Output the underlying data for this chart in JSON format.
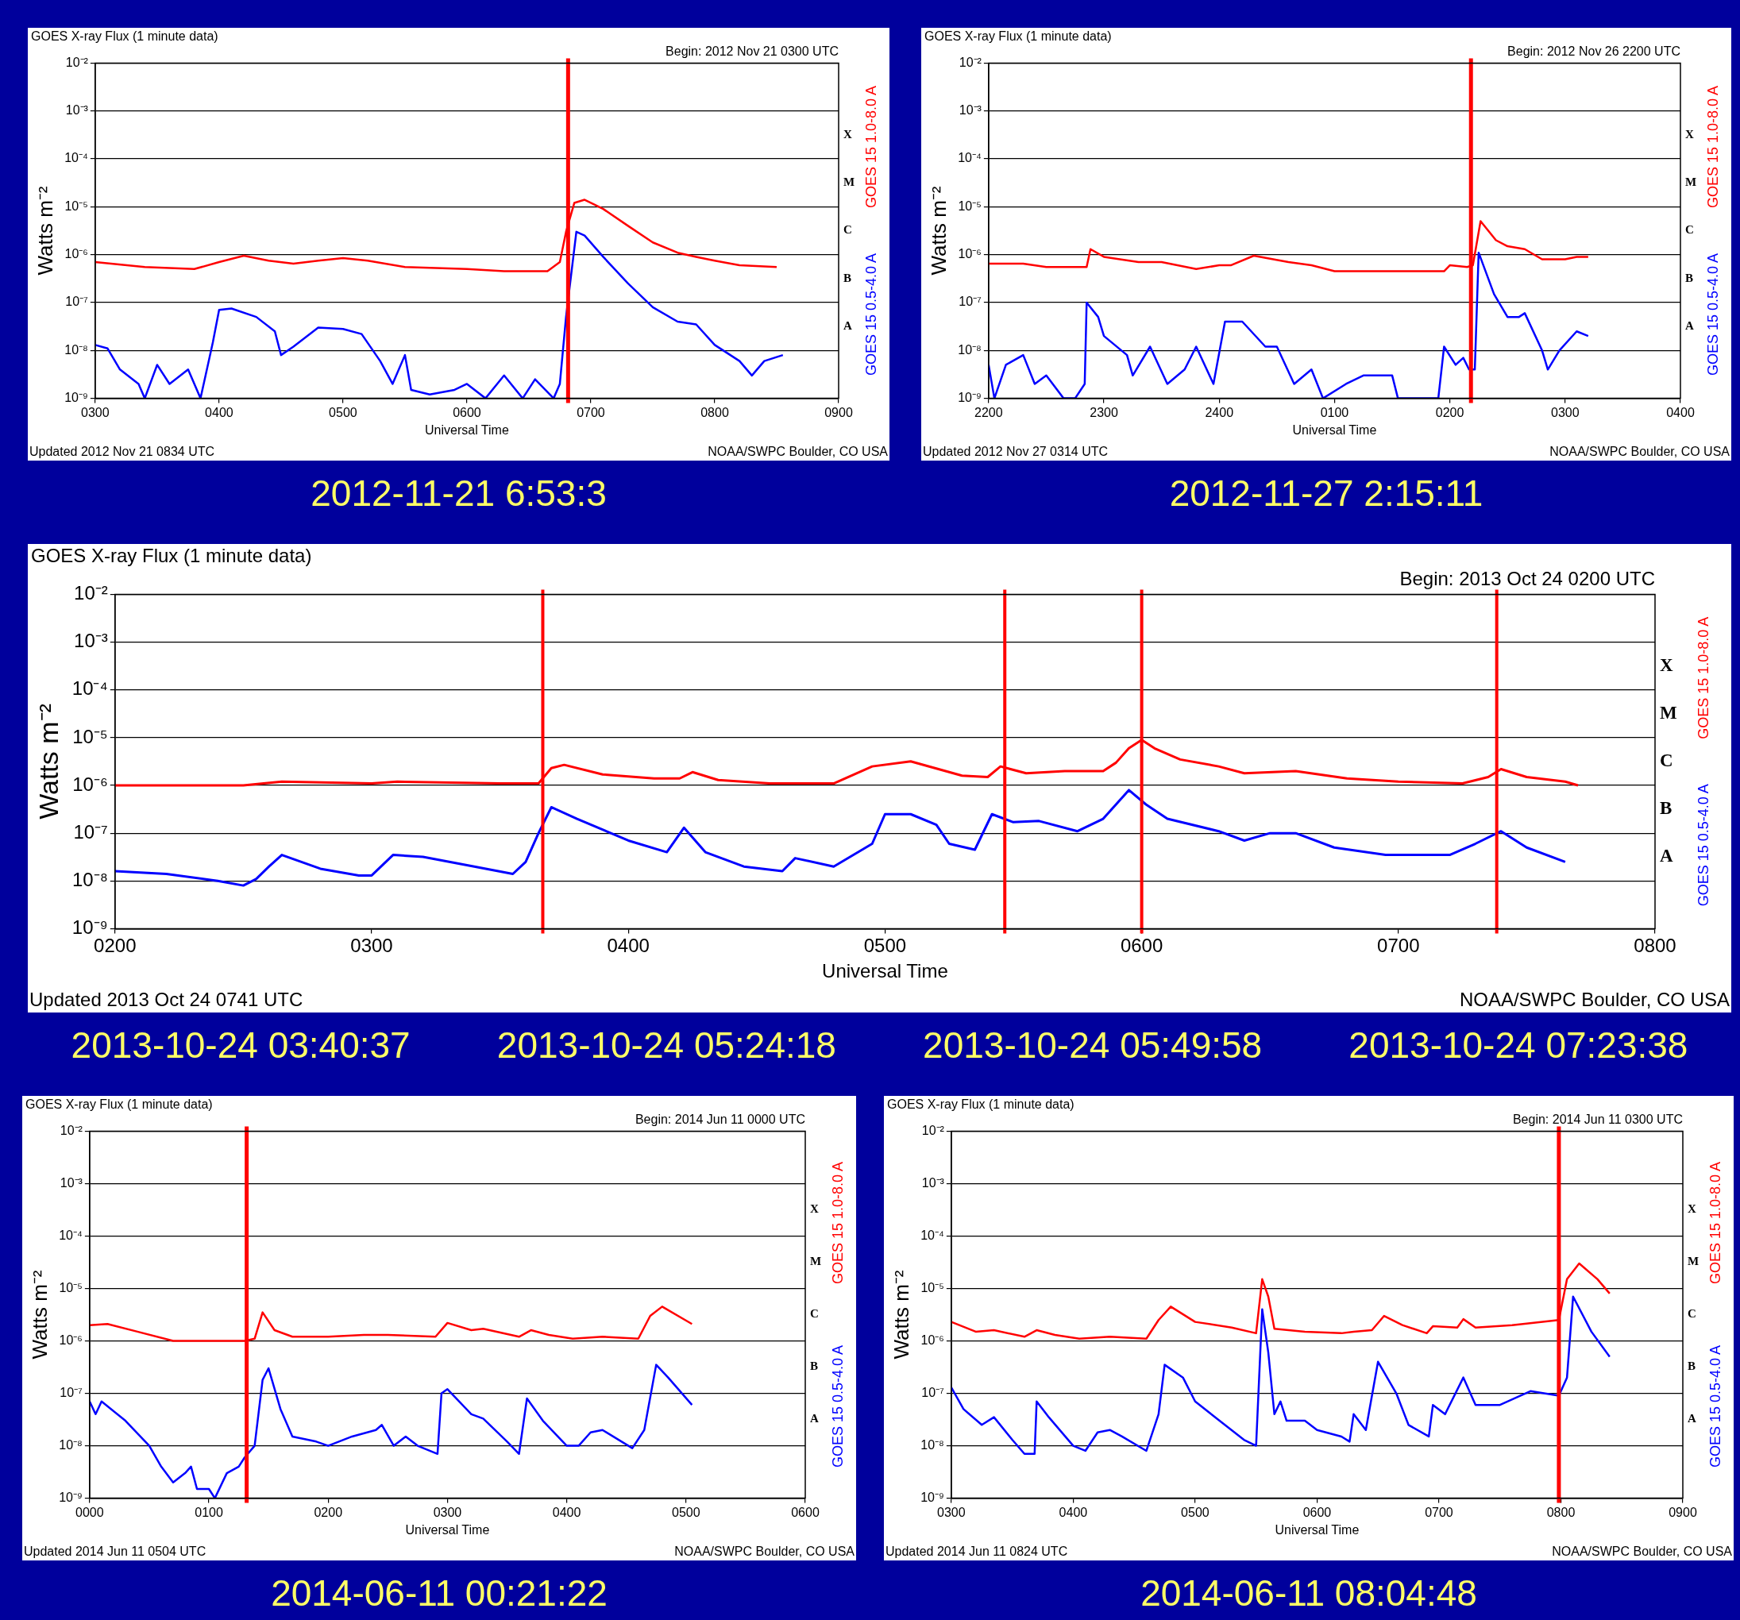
{
  "chart_data": [
    {
      "type": "line",
      "title": "GOES X-ray Flux (1 minute data)",
      "subtitle": "Begin: 2012 Nov 21 0300 UTC",
      "xlabel": "Universal Time",
      "ylabel": "Watts m⁻²",
      "annotations": [
        "Updated 2012 Nov 21 0834 UTC",
        "NOAA/SWPC Boulder, CO USA",
        "A",
        "B",
        "C",
        "M",
        "X",
        "2012-11-21 6:53:3"
      ],
      "xlim": [
        "2012-11-21T03:00",
        "2012-11-21T09:00"
      ],
      "xticks": [
        {
          "value": "2012-11-21T03:00",
          "label": "0300"
        },
        {
          "value": "2012-11-21T04:00",
          "label": "0400"
        },
        {
          "value": "2012-11-21T05:00",
          "label": "0500"
        },
        {
          "value": "2012-11-21T06:00",
          "label": "0600"
        },
        {
          "value": "2012-11-21T07:00",
          "label": "0700"
        },
        {
          "value": "2012-11-21T08:00",
          "label": "0800"
        },
        {
          "value": "2012-11-21T09:00",
          "label": "0900"
        }
      ],
      "ylim": [
        1e-09,
        0.01
      ],
      "yticks": [
        {
          "value": 1e-09,
          "label": "10⁻⁹"
        },
        {
          "value": 1e-08,
          "label": "10⁻⁸"
        },
        {
          "value": 1e-07,
          "label": "10⁻⁷"
        },
        {
          "value": 1e-06,
          "label": "10⁻⁶"
        },
        {
          "value": 1e-05,
          "label": "10⁻⁵"
        },
        {
          "value": 0.0001,
          "label": "10⁻⁴"
        },
        {
          "value": 0.001,
          "label": "10⁻³"
        },
        {
          "value": 0.01,
          "label": "10⁻²"
        }
      ],
      "log": true,
      "grid": "y",
      "ref_lines": [
        {
          "axis": "x",
          "value": "2012-11-21T06:49",
          "color": "#ff0000"
        }
      ],
      "series": [
        {
          "name": "GOES 15 1.0-8.0 A",
          "color": "#ff0000",
          "x": [
            "2012-11-21T03:00",
            "2012-11-21T03:24",
            "2012-11-21T03:48",
            "2012-11-21T04:00",
            "2012-11-21T04:12",
            "2012-11-21T04:24",
            "2012-11-21T04:36",
            "2012-11-21T04:48",
            "2012-11-21T05:00",
            "2012-11-21T05:12",
            "2012-11-21T05:30",
            "2012-11-21T06:00",
            "2012-11-21T06:18",
            "2012-11-21T06:39",
            "2012-11-21T06:45",
            "2012-11-21T06:48",
            "2012-11-21T06:52",
            "2012-11-21T06:57",
            "2012-11-21T07:06",
            "2012-11-21T07:18",
            "2012-11-21T07:30",
            "2012-11-21T07:42",
            "2012-11-21T07:51",
            "2012-11-21T08:00",
            "2012-11-21T08:12",
            "2012-11-21T08:30"
          ],
          "values": [
            7e-07,
            5.5e-07,
            5e-07,
            7e-07,
            9.5e-07,
            7.5e-07,
            6.5e-07,
            7.5e-07,
            8.5e-07,
            7.5e-07,
            5.5e-07,
            5e-07,
            4.5e-07,
            4.5e-07,
            7e-07,
            3e-06,
            1.2e-05,
            1.4e-05,
            9e-06,
            4e-06,
            1.8e-06,
            1.1e-06,
            9e-07,
            7.5e-07,
            6e-07,
            5.5e-07
          ]
        },
        {
          "name": "GOES 15 0.5-4.0 A",
          "color": "#0000ff",
          "x": [
            "2012-11-21T03:00",
            "2012-11-21T03:06",
            "2012-11-21T03:12",
            "2012-11-21T03:21",
            "2012-11-21T03:24",
            "2012-11-21T03:30",
            "2012-11-21T03:36",
            "2012-11-21T03:45",
            "2012-11-21T03:51",
            "2012-11-21T03:57",
            "2012-11-21T04:00",
            "2012-11-21T04:06",
            "2012-11-21T04:18",
            "2012-11-21T04:27",
            "2012-11-21T04:30",
            "2012-11-21T04:36",
            "2012-11-21T04:48",
            "2012-11-21T05:00",
            "2012-11-21T05:09",
            "2012-11-21T05:18",
            "2012-11-21T05:24",
            "2012-11-21T05:30",
            "2012-11-21T05:33",
            "2012-11-21T05:42",
            "2012-11-21T05:54",
            "2012-11-21T06:00",
            "2012-11-21T06:09",
            "2012-11-21T06:18",
            "2012-11-21T06:27",
            "2012-11-21T06:33",
            "2012-11-21T06:42",
            "2012-11-21T06:45",
            "2012-11-21T06:48",
            "2012-11-21T06:53",
            "2012-11-21T06:57",
            "2012-11-21T07:06",
            "2012-11-21T07:18",
            "2012-11-21T07:30",
            "2012-11-21T07:42",
            "2012-11-21T07:51",
            "2012-11-21T08:00",
            "2012-11-21T08:12",
            "2012-11-21T08:18",
            "2012-11-21T08:24",
            "2012-11-21T08:33"
          ],
          "values": [
            1.3e-08,
            1.1e-08,
            4e-09,
            2e-09,
            1e-09,
            5e-09,
            2e-09,
            4e-09,
            1e-09,
            1.5e-08,
            7e-08,
            7.5e-08,
            5e-08,
            2.5e-08,
            8e-09,
            1.2e-08,
            3e-08,
            2.8e-08,
            2.2e-08,
            6e-09,
            2e-09,
            8e-09,
            1.5e-09,
            1.2e-09,
            1.5e-09,
            2e-09,
            1e-09,
            3e-09,
            1e-09,
            2.5e-09,
            1e-09,
            2e-09,
            5e-08,
            3e-06,
            2.5e-06,
            9e-07,
            2.5e-07,
            8e-08,
            4e-08,
            3.5e-08,
            1.3e-08,
            6e-09,
            3e-09,
            6e-09,
            8e-09
          ]
        }
      ]
    },
    {
      "type": "line",
      "title": "GOES X-ray Flux (1 minute data)",
      "subtitle": "Begin: 2012 Nov 26 2200 UTC",
      "xlabel": "Universal Time",
      "ylabel": "Watts m⁻²",
      "annotations": [
        "Updated 2012 Nov 27 0314 UTC",
        "NOAA/SWPC Boulder, CO USA",
        "A",
        "B",
        "C",
        "M",
        "X",
        "2012-11-27 2:15:11"
      ],
      "xlim": [
        "2012-11-26T22:00",
        "2012-11-27T04:00"
      ],
      "xticks": [
        {
          "value": "2012-11-26T22:00",
          "label": "2200"
        },
        {
          "value": "2012-11-26T23:00",
          "label": "2300"
        },
        {
          "value": "2012-11-27T00:00",
          "label": "2400"
        },
        {
          "value": "2012-11-27T01:00",
          "label": "0100"
        },
        {
          "value": "2012-11-27T02:00",
          "label": "0200"
        },
        {
          "value": "2012-11-27T03:00",
          "label": "0300"
        },
        {
          "value": "2012-11-27T04:00",
          "label": "0400"
        }
      ],
      "ylim": [
        1e-09,
        0.01
      ],
      "yticks": [
        {
          "value": 1e-09,
          "label": "10⁻⁹"
        },
        {
          "value": 1e-08,
          "label": "10⁻⁸"
        },
        {
          "value": 1e-07,
          "label": "10⁻⁷"
        },
        {
          "value": 1e-06,
          "label": "10⁻⁶"
        },
        {
          "value": 1e-05,
          "label": "10⁻⁵"
        },
        {
          "value": 0.0001,
          "label": "10⁻⁴"
        },
        {
          "value": 0.001,
          "label": "10⁻³"
        },
        {
          "value": 0.01,
          "label": "10⁻²"
        }
      ],
      "log": true,
      "grid": "y",
      "ref_lines": [
        {
          "axis": "x",
          "value": "2012-11-27T02:11",
          "color": "#ff0000"
        }
      ],
      "series": [
        {
          "name": "GOES 15 1.0-8.0 A",
          "color": "#ff0000",
          "x": [
            "2012-11-26T22:00",
            "2012-11-26T22:18",
            "2012-11-26T22:30",
            "2012-11-26T22:51",
            "2012-11-26T22:53",
            "2012-11-26T23:00",
            "2012-11-26T23:18",
            "2012-11-26T23:30",
            "2012-11-26T23:48",
            "2012-11-27T00:00",
            "2012-11-27T00:06",
            "2012-11-27T00:18",
            "2012-11-27T00:36",
            "2012-11-27T00:48",
            "2012-11-27T01:00",
            "2012-11-27T01:18",
            "2012-11-27T01:36",
            "2012-11-27T01:57",
            "2012-11-27T02:00",
            "2012-11-27T02:09",
            "2012-11-27T02:12",
            "2012-11-27T02:16",
            "2012-11-27T02:24",
            "2012-11-27T02:30",
            "2012-11-27T02:39",
            "2012-11-27T02:48",
            "2012-11-27T03:00",
            "2012-11-27T03:06",
            "2012-11-27T03:12"
          ],
          "values": [
            6.5e-07,
            6.5e-07,
            5.5e-07,
            5.5e-07,
            1.3e-06,
            9e-07,
            7e-07,
            7e-07,
            5e-07,
            6e-07,
            6e-07,
            9.5e-07,
            7e-07,
            6e-07,
            4.5e-07,
            4.5e-07,
            4.5e-07,
            4.5e-07,
            6e-07,
            5.5e-07,
            6e-07,
            5e-06,
            2e-06,
            1.5e-06,
            1.3e-06,
            8e-07,
            8e-07,
            9e-07,
            9e-07
          ]
        },
        {
          "name": "GOES 15 0.5-4.0 A",
          "color": "#0000ff",
          "x": [
            "2012-11-26T22:00",
            "2012-11-26T22:03",
            "2012-11-26T22:09",
            "2012-11-26T22:18",
            "2012-11-26T22:24",
            "2012-11-26T22:30",
            "2012-11-26T22:39",
            "2012-11-26T22:45",
            "2012-11-26T22:50",
            "2012-11-26T22:51",
            "2012-11-26T22:57",
            "2012-11-26T23:00",
            "2012-11-26T23:12",
            "2012-11-26T23:15",
            "2012-11-26T23:24",
            "2012-11-26T23:33",
            "2012-11-26T23:42",
            "2012-11-26T23:48",
            "2012-11-26T23:57",
            "2012-11-27T00:03",
            "2012-11-27T00:12",
            "2012-11-27T00:24",
            "2012-11-27T00:30",
            "2012-11-27T00:39",
            "2012-11-27T00:48",
            "2012-11-27T00:54",
            "2012-11-27T01:06",
            "2012-11-27T01:15",
            "2012-11-27T01:30",
            "2012-11-27T01:33",
            "2012-11-27T01:54",
            "2012-11-27T01:57",
            "2012-11-27T02:03",
            "2012-11-27T02:07",
            "2012-11-27T02:10",
            "2012-11-27T02:13",
            "2012-11-27T02:15",
            "2012-11-27T02:23",
            "2012-11-27T02:30",
            "2012-11-27T02:36",
            "2012-11-27T02:39",
            "2012-11-27T02:48",
            "2012-11-27T02:51",
            "2012-11-27T02:57",
            "2012-11-27T03:06",
            "2012-11-27T03:12"
          ],
          "values": [
            5e-09,
            1e-09,
            5e-09,
            8e-09,
            2e-09,
            3e-09,
            1e-09,
            1e-09,
            2e-09,
            1e-07,
            5e-08,
            2e-08,
            8e-09,
            3e-09,
            1.2e-08,
            2e-09,
            4e-09,
            1.2e-08,
            2e-09,
            4e-08,
            4e-08,
            1.2e-08,
            1.2e-08,
            2e-09,
            4e-09,
            1e-09,
            2e-09,
            3e-09,
            3e-09,
            1e-09,
            1e-09,
            1.2e-08,
            5e-09,
            7e-09,
            4e-09,
            4e-09,
            1.1e-06,
            1.5e-07,
            5e-08,
            5e-08,
            6e-08,
            1e-08,
            4e-09,
            1e-08,
            2.5e-08,
            2e-08
          ]
        }
      ]
    },
    {
      "type": "line",
      "title": "GOES X-ray Flux (1 minute data)",
      "subtitle": "Begin: 2013 Oct 24 0200 UTC",
      "xlabel": "Universal Time",
      "ylabel": "Watts m⁻²",
      "annotations": [
        "Updated 2013 Oct 24 0741 UTC",
        "NOAA/SWPC Boulder, CO USA",
        "A",
        "B",
        "C",
        "M",
        "X",
        "2013-10-24 03:40:37",
        "2013-10-24 05:24:18",
        "2013-10-24 05:49:58",
        "2013-10-24 07:23:38"
      ],
      "xlim": [
        "2013-10-24T02:00",
        "2013-10-24T08:00"
      ],
      "xticks": [
        {
          "value": "2013-10-24T02:00",
          "label": "0200"
        },
        {
          "value": "2013-10-24T03:00",
          "label": "0300"
        },
        {
          "value": "2013-10-24T04:00",
          "label": "0400"
        },
        {
          "value": "2013-10-24T05:00",
          "label": "0500"
        },
        {
          "value": "2013-10-24T06:00",
          "label": "0600"
        },
        {
          "value": "2013-10-24T07:00",
          "label": "0700"
        },
        {
          "value": "2013-10-24T08:00",
          "label": "0800"
        }
      ],
      "ylim": [
        1e-09,
        0.01
      ],
      "yticks": [
        {
          "value": 1e-09,
          "label": "10⁻⁹"
        },
        {
          "value": 1e-08,
          "label": "10⁻⁸"
        },
        {
          "value": 1e-07,
          "label": "10⁻⁷"
        },
        {
          "value": 1e-06,
          "label": "10⁻⁶"
        },
        {
          "value": 1e-05,
          "label": "10⁻⁵"
        },
        {
          "value": 0.0001,
          "label": "10⁻⁴"
        },
        {
          "value": 0.001,
          "label": "10⁻³"
        },
        {
          "value": 0.01,
          "label": "10⁻²"
        }
      ],
      "log": true,
      "grid": "y",
      "ref_lines": [
        {
          "axis": "x",
          "value": "2013-10-24T03:40",
          "color": "#ff0000"
        },
        {
          "axis": "x",
          "value": "2013-10-24T05:28",
          "color": "#ff0000"
        },
        {
          "axis": "x",
          "value": "2013-10-24T06:00",
          "color": "#ff0000"
        },
        {
          "axis": "x",
          "value": "2013-10-24T07:23",
          "color": "#ff0000"
        }
      ],
      "series": [
        {
          "name": "GOES 15 1.0-8.0 A",
          "color": "#ff0000",
          "x": [
            "2013-10-24T02:00",
            "2013-10-24T02:30",
            "2013-10-24T02:39",
            "2013-10-24T03:00",
            "2013-10-24T03:06",
            "2013-10-24T03:30",
            "2013-10-24T03:39",
            "2013-10-24T03:42",
            "2013-10-24T03:45",
            "2013-10-24T03:54",
            "2013-10-24T04:06",
            "2013-10-24T04:12",
            "2013-10-24T04:15",
            "2013-10-24T04:21",
            "2013-10-24T04:33",
            "2013-10-24T04:48",
            "2013-10-24T04:57",
            "2013-10-24T05:06",
            "2013-10-24T05:18",
            "2013-10-24T05:24",
            "2013-10-24T05:27",
            "2013-10-24T05:33",
            "2013-10-24T05:42",
            "2013-10-24T05:51",
            "2013-10-24T05:54",
            "2013-10-24T05:57",
            "2013-10-24T06:00",
            "2013-10-24T06:03",
            "2013-10-24T06:09",
            "2013-10-24T06:18",
            "2013-10-24T06:24",
            "2013-10-24T06:36",
            "2013-10-24T06:48",
            "2013-10-24T07:00",
            "2013-10-24T07:15",
            "2013-10-24T07:21",
            "2013-10-24T07:24",
            "2013-10-24T07:30",
            "2013-10-24T07:39",
            "2013-10-24T07:42"
          ],
          "values": [
            1e-06,
            1e-06,
            1.2e-06,
            1.1e-06,
            1.2e-06,
            1.1e-06,
            1.1e-06,
            2.3e-06,
            2.7e-06,
            1.7e-06,
            1.4e-06,
            1.4e-06,
            1.9e-06,
            1.3e-06,
            1.1e-06,
            1.1e-06,
            2.5e-06,
            3.2e-06,
            1.6e-06,
            1.5e-06,
            2.5e-06,
            1.8e-06,
            2e-06,
            2e-06,
            3e-06,
            6e-06,
            9e-06,
            6e-06,
            3.5e-06,
            2.5e-06,
            1.8e-06,
            2e-06,
            1.4e-06,
            1.2e-06,
            1.1e-06,
            1.5e-06,
            2.2e-06,
            1.5e-06,
            1.2e-06,
            1e-06
          ]
        },
        {
          "name": "GOES 15 0.5-4.0 A",
          "color": "#0000ff",
          "x": [
            "2013-10-24T02:00",
            "2013-10-24T02:12",
            "2013-10-24T02:24",
            "2013-10-24T02:30",
            "2013-10-24T02:33",
            "2013-10-24T02:36",
            "2013-10-24T02:39",
            "2013-10-24T02:48",
            "2013-10-24T02:57",
            "2013-10-24T03:00",
            "2013-10-24T03:05",
            "2013-10-24T03:12",
            "2013-10-24T03:24",
            "2013-10-24T03:33",
            "2013-10-24T03:36",
            "2013-10-24T03:39",
            "2013-10-24T03:42",
            "2013-10-24T03:48",
            "2013-10-24T04:00",
            "2013-10-24T04:09",
            "2013-10-24T04:13",
            "2013-10-24T04:18",
            "2013-10-24T04:27",
            "2013-10-24T04:36",
            "2013-10-24T04:39",
            "2013-10-24T04:48",
            "2013-10-24T04:57",
            "2013-10-24T05:00",
            "2013-10-24T05:06",
            "2013-10-24T05:12",
            "2013-10-24T05:15",
            "2013-10-24T05:21",
            "2013-10-24T05:25",
            "2013-10-24T05:30",
            "2013-10-24T05:36",
            "2013-10-24T05:45",
            "2013-10-24T05:51",
            "2013-10-24T05:57",
            "2013-10-24T06:01",
            "2013-10-24T06:06",
            "2013-10-24T06:18",
            "2013-10-24T06:24",
            "2013-10-24T06:30",
            "2013-10-24T06:36",
            "2013-10-24T06:45",
            "2013-10-24T06:57",
            "2013-10-24T07:12",
            "2013-10-24T07:18",
            "2013-10-24T07:24",
            "2013-10-24T07:30",
            "2013-10-24T07:39"
          ],
          "values": [
            1.6e-08,
            1.4e-08,
            1e-08,
            8e-09,
            1.1e-08,
            2e-08,
            3.5e-08,
            1.8e-08,
            1.3e-08,
            1.3e-08,
            3.5e-08,
            3.2e-08,
            2e-08,
            1.4e-08,
            2.5e-08,
            1e-07,
            3.5e-07,
            2e-07,
            7e-08,
            4e-08,
            1.3e-07,
            4e-08,
            2e-08,
            1.6e-08,
            3e-08,
            2e-08,
            6e-08,
            2.5e-07,
            2.5e-07,
            1.5e-07,
            6e-08,
            4.5e-08,
            2.5e-07,
            1.7e-07,
            1.8e-07,
            1.1e-07,
            2e-07,
            8e-07,
            4e-07,
            2e-07,
            1.1e-07,
            7e-08,
            1e-07,
            1e-07,
            5e-08,
            3.5e-08,
            3.5e-08,
            6e-08,
            1.1e-07,
            5e-08,
            2.5e-08
          ]
        }
      ]
    },
    {
      "type": "line",
      "title": "GOES X-ray Flux (1 minute data)",
      "subtitle": "Begin: 2014 Jun 11 0000 UTC",
      "xlabel": "Universal Time",
      "ylabel": "Watts m⁻²",
      "annotations": [
        "Updated 2014 Jun 11 0504 UTC",
        "NOAA/SWPC Boulder, CO USA",
        "A",
        "B",
        "C",
        "M",
        "X",
        "2014-06-11 00:21:22"
      ],
      "xlim": [
        "2014-06-11T00:00",
        "2014-06-11T06:00"
      ],
      "xticks": [
        {
          "value": "2014-06-11T00:00",
          "label": "0000"
        },
        {
          "value": "2014-06-11T01:00",
          "label": "0100"
        },
        {
          "value": "2014-06-11T02:00",
          "label": "0200"
        },
        {
          "value": "2014-06-11T03:00",
          "label": "0300"
        },
        {
          "value": "2014-06-11T04:00",
          "label": "0400"
        },
        {
          "value": "2014-06-11T05:00",
          "label": "0500"
        },
        {
          "value": "2014-06-11T06:00",
          "label": "0600"
        }
      ],
      "ylim": [
        1e-09,
        0.01
      ],
      "yticks": [
        {
          "value": 1e-09,
          "label": "10⁻⁹"
        },
        {
          "value": 1e-08,
          "label": "10⁻⁸"
        },
        {
          "value": 1e-07,
          "label": "10⁻⁷"
        },
        {
          "value": 1e-06,
          "label": "10⁻⁶"
        },
        {
          "value": 1e-05,
          "label": "10⁻⁵"
        },
        {
          "value": 0.0001,
          "label": "10⁻⁴"
        },
        {
          "value": 0.001,
          "label": "10⁻³"
        },
        {
          "value": 0.01,
          "label": "10⁻²"
        }
      ],
      "log": true,
      "grid": "y",
      "ref_lines": [
        {
          "axis": "x",
          "value": "2014-06-11T01:19",
          "color": "#ff0000"
        }
      ],
      "series": [
        {
          "name": "GOES 15 1.0-8.0 A",
          "color": "#ff0000",
          "x": [
            "2014-06-11T00:00",
            "2014-06-11T00:09",
            "2014-06-11T00:24",
            "2014-06-11T00:42",
            "2014-06-11T01:00",
            "2014-06-11T01:18",
            "2014-06-11T01:23",
            "2014-06-11T01:27",
            "2014-06-11T01:33",
            "2014-06-11T01:42",
            "2014-06-11T02:00",
            "2014-06-11T02:18",
            "2014-06-11T02:30",
            "2014-06-11T02:54",
            "2014-06-11T03:00",
            "2014-06-11T03:12",
            "2014-06-11T03:18",
            "2014-06-11T03:36",
            "2014-06-11T03:42",
            "2014-06-11T03:51",
            "2014-06-11T04:03",
            "2014-06-11T04:18",
            "2014-06-11T04:36",
            "2014-06-11T04:42",
            "2014-06-11T04:48",
            "2014-06-11T05:03"
          ],
          "values": [
            2e-06,
            2.1e-06,
            1.5e-06,
            1e-06,
            1e-06,
            1e-06,
            1.1e-06,
            3.5e-06,
            1.6e-06,
            1.2e-06,
            1.2e-06,
            1.3e-06,
            1.3e-06,
            1.2e-06,
            2.2e-06,
            1.6e-06,
            1.7e-06,
            1.2e-06,
            1.6e-06,
            1.3e-06,
            1.1e-06,
            1.2e-06,
            1.1e-06,
            3e-06,
            4.5e-06,
            2.1e-06
          ]
        },
        {
          "name": "GOES 15 0.5-4.0 A",
          "color": "#0000ff",
          "x": [
            "2014-06-11T00:00",
            "2014-06-11T00:03",
            "2014-06-11T00:06",
            "2014-06-11T00:18",
            "2014-06-11T00:30",
            "2014-06-11T00:36",
            "2014-06-11T00:42",
            "2014-06-11T00:48",
            "2014-06-11T00:51",
            "2014-06-11T00:54",
            "2014-06-11T01:00",
            "2014-06-11T01:03",
            "2014-06-11T01:09",
            "2014-06-11T01:15",
            "2014-06-11T01:18",
            "2014-06-11T01:23",
            "2014-06-11T01:27",
            "2014-06-11T01:30",
            "2014-06-11T01:36",
            "2014-06-11T01:42",
            "2014-06-11T01:54",
            "2014-06-11T02:00",
            "2014-06-11T02:12",
            "2014-06-11T02:24",
            "2014-06-11T02:27",
            "2014-06-11T02:33",
            "2014-06-11T02:39",
            "2014-06-11T02:45",
            "2014-06-11T02:55",
            "2014-06-11T02:57",
            "2014-06-11T03:00",
            "2014-06-11T03:12",
            "2014-06-11T03:18",
            "2014-06-11T03:30",
            "2014-06-11T03:36",
            "2014-06-11T03:40",
            "2014-06-11T03:48",
            "2014-06-11T04:00",
            "2014-06-11T04:06",
            "2014-06-11T04:12",
            "2014-06-11T04:18",
            "2014-06-11T04:33",
            "2014-06-11T04:39",
            "2014-06-11T04:45",
            "2014-06-11T04:51",
            "2014-06-11T05:03"
          ],
          "values": [
            7e-08,
            4e-08,
            7e-08,
            3e-08,
            1e-08,
            4e-09,
            2e-09,
            3e-09,
            4e-09,
            1.5e-09,
            1.5e-09,
            1e-09,
            3e-09,
            4e-09,
            6e-09,
            1e-08,
            1.8e-07,
            3e-07,
            5e-08,
            1.5e-08,
            1.2e-08,
            1e-08,
            1.5e-08,
            2e-08,
            2.5e-08,
            1e-08,
            1.5e-08,
            1e-08,
            7e-09,
            1e-07,
            1.2e-07,
            4e-08,
            3.3e-08,
            1.2e-08,
            7e-09,
            8e-08,
            3e-08,
            1e-08,
            1e-08,
            1.8e-08,
            2e-08,
            9e-09,
            2e-08,
            3.5e-07,
            2e-07,
            6e-08
          ]
        }
      ]
    },
    {
      "type": "line",
      "title": "GOES X-ray Flux (1 minute data)",
      "subtitle": "Begin: 2014 Jun 11 0300 UTC",
      "xlabel": "Universal Time",
      "ylabel": "Watts m⁻²",
      "annotations": [
        "Updated 2014 Jun 11 0824 UTC",
        "NOAA/SWPC Boulder, CO USA",
        "A",
        "B",
        "C",
        "M",
        "X",
        "2014-06-11 08:04:48"
      ],
      "xlim": [
        "2014-06-11T03:00",
        "2014-06-11T09:00"
      ],
      "xticks": [
        {
          "value": "2014-06-11T03:00",
          "label": "0300"
        },
        {
          "value": "2014-06-11T04:00",
          "label": "0400"
        },
        {
          "value": "2014-06-11T05:00",
          "label": "0500"
        },
        {
          "value": "2014-06-11T06:00",
          "label": "0600"
        },
        {
          "value": "2014-06-11T07:00",
          "label": "0700"
        },
        {
          "value": "2014-06-11T08:00",
          "label": "0800"
        },
        {
          "value": "2014-06-11T09:00",
          "label": "0900"
        }
      ],
      "ylim": [
        1e-09,
        0.01
      ],
      "yticks": [
        {
          "value": 1e-09,
          "label": "10⁻⁹"
        },
        {
          "value": 1e-08,
          "label": "10⁻⁸"
        },
        {
          "value": 1e-07,
          "label": "10⁻⁷"
        },
        {
          "value": 1e-06,
          "label": "10⁻⁶"
        },
        {
          "value": 1e-05,
          "label": "10⁻⁵"
        },
        {
          "value": 0.0001,
          "label": "10⁻⁴"
        },
        {
          "value": 0.001,
          "label": "10⁻³"
        },
        {
          "value": 0.01,
          "label": "10⁻²"
        }
      ],
      "log": true,
      "grid": "y",
      "ref_lines": [
        {
          "axis": "x",
          "value": "2014-06-11T07:59",
          "color": "#ff0000"
        }
      ],
      "series": [
        {
          "name": "GOES 15 1.0-8.0 A",
          "color": "#ff0000",
          "x": [
            "2014-06-11T03:00",
            "2014-06-11T03:12",
            "2014-06-11T03:21",
            "2014-06-11T03:36",
            "2014-06-11T03:42",
            "2014-06-11T03:51",
            "2014-06-11T04:03",
            "2014-06-11T04:18",
            "2014-06-11T04:36",
            "2014-06-11T04:42",
            "2014-06-11T04:48",
            "2014-06-11T05:00",
            "2014-06-11T05:18",
            "2014-06-11T05:30",
            "2014-06-11T05:33",
            "2014-06-11T05:36",
            "2014-06-11T05:39",
            "2014-06-11T05:54",
            "2014-06-11T06:12",
            "2014-06-11T06:18",
            "2014-06-11T06:27",
            "2014-06-11T06:33",
            "2014-06-11T06:42",
            "2014-06-11T06:54",
            "2014-06-11T06:57",
            "2014-06-11T07:09",
            "2014-06-11T07:12",
            "2014-06-11T07:18",
            "2014-06-11T07:36",
            "2014-06-11T07:59",
            "2014-06-11T08:03",
            "2014-06-11T08:09",
            "2014-06-11T08:18",
            "2014-06-11T08:24"
          ],
          "values": [
            2.3e-06,
            1.5e-06,
            1.6e-06,
            1.2e-06,
            1.6e-06,
            1.3e-06,
            1.1e-06,
            1.2e-06,
            1.1e-06,
            2.5e-06,
            4.5e-06,
            2.3e-06,
            1.8e-06,
            1.4e-06,
            1.5e-05,
            7e-06,
            1.7e-06,
            1.5e-06,
            1.4e-06,
            1.5e-06,
            1.6e-06,
            3e-06,
            2e-06,
            1.4e-06,
            1.9e-06,
            1.8e-06,
            2.6e-06,
            1.8e-06,
            2e-06,
            2.5e-06,
            1.5e-05,
            3e-05,
            1.5e-05,
            8e-06
          ]
        },
        {
          "name": "GOES 15 0.5-4.0 A",
          "color": "#0000ff",
          "x": [
            "2014-06-11T03:00",
            "2014-06-11T03:06",
            "2014-06-11T03:15",
            "2014-06-11T03:21",
            "2014-06-11T03:30",
            "2014-06-11T03:36",
            "2014-06-11T03:41",
            "2014-06-11T03:42",
            "2014-06-11T03:48",
            "2014-06-11T04:00",
            "2014-06-11T04:06",
            "2014-06-11T04:12",
            "2014-06-11T04:18",
            "2014-06-11T04:24",
            "2014-06-11T04:36",
            "2014-06-11T04:42",
            "2014-06-11T04:45",
            "2014-06-11T04:54",
            "2014-06-11T05:00",
            "2014-06-11T05:12",
            "2014-06-11T05:24",
            "2014-06-11T05:30",
            "2014-06-11T05:33",
            "2014-06-11T05:36",
            "2014-06-11T05:39",
            "2014-06-11T05:42",
            "2014-06-11T05:45",
            "2014-06-11T05:54",
            "2014-06-11T06:00",
            "2014-06-11T06:12",
            "2014-06-11T06:16",
            "2014-06-11T06:18",
            "2014-06-11T06:24",
            "2014-06-11T06:30",
            "2014-06-11T06:39",
            "2014-06-11T06:45",
            "2014-06-11T06:55",
            "2014-06-11T06:57",
            "2014-06-11T07:03",
            "2014-06-11T07:12",
            "2014-06-11T07:18",
            "2014-06-11T07:30",
            "2014-06-11T07:45",
            "2014-06-11T07:59",
            "2014-06-11T08:03",
            "2014-06-11T08:06",
            "2014-06-11T08:15",
            "2014-06-11T08:24"
          ],
          "values": [
            1.3e-07,
            5e-08,
            2.5e-08,
            3.5e-08,
            1.3e-08,
            7e-09,
            7e-09,
            7e-08,
            3.5e-08,
            1e-08,
            8e-09,
            1.8e-08,
            2e-08,
            1.5e-08,
            8e-09,
            4e-08,
            3.5e-07,
            2e-07,
            7e-08,
            3e-08,
            1.3e-08,
            1e-08,
            4e-06,
            6e-07,
            4e-08,
            7e-08,
            3e-08,
            3e-08,
            2e-08,
            1.5e-08,
            1.2e-08,
            4e-08,
            2e-08,
            4e-07,
            1e-07,
            2.5e-08,
            1.5e-08,
            6e-08,
            4e-08,
            2e-07,
            6e-08,
            6e-08,
            1.1e-07,
            9e-08,
            2e-07,
            7e-06,
            1.5e-06,
            5e-07
          ]
        }
      ]
    }
  ]
}
